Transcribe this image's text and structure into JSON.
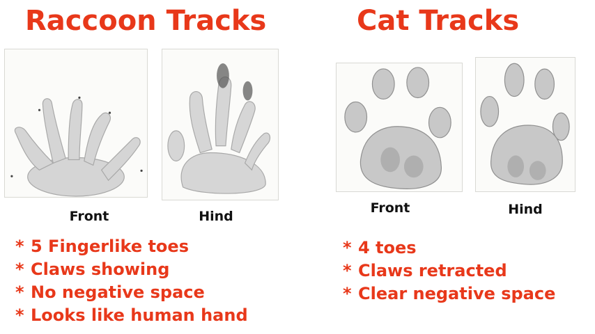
{
  "raccoon": {
    "title": "Raccoon Tracks",
    "front_label": "Front",
    "hind_label": "Hind",
    "bullet_marker": "*",
    "bullets": [
      "5 Fingerlike toes",
      "Claws showing",
      "No negative space",
      "Looks like human hand"
    ]
  },
  "cat": {
    "title": "Cat Tracks",
    "front_label": "Front",
    "hind_label": "Hind",
    "bullet_marker": "*",
    "bullets": [
      "4 toes",
      "Claws retracted",
      "Clear negative space"
    ]
  },
  "colors": {
    "heading": "#e8381a",
    "caption": "#111111",
    "pencil": "#8a8a8a"
  }
}
